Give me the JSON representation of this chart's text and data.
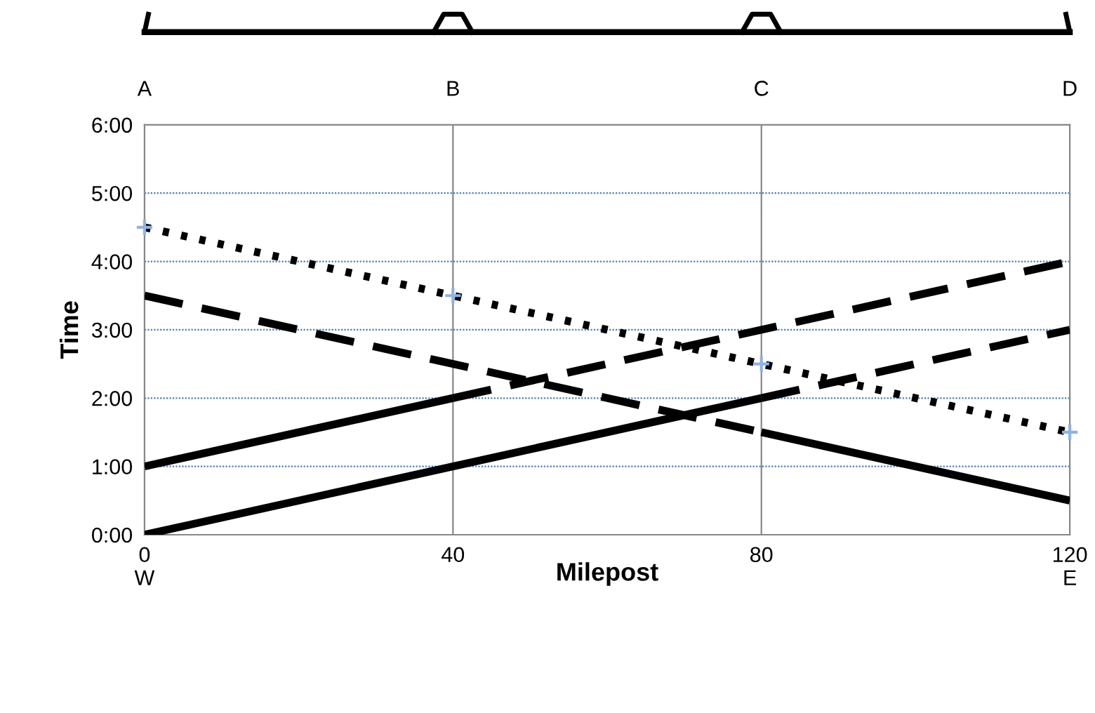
{
  "chart_data": {
    "type": "line",
    "xlabel": "Milepost",
    "ylabel": "Time",
    "xlim": [
      0,
      120
    ],
    "ylim": [
      0,
      6
    ],
    "xticks": [
      {
        "value": 0,
        "label": "0\nW"
      },
      40,
      80,
      {
        "value": 120,
        "label": "120\nE"
      }
    ],
    "annotations": [
      "A",
      "B",
      "C",
      "D"
    ],
    "yticks": [
      {
        "value": 0,
        "label": "0:00"
      },
      {
        "value": 1,
        "label": "1:00"
      },
      {
        "value": 2,
        "label": "2:00"
      },
      {
        "value": 3,
        "label": "3:00"
      },
      {
        "value": 4,
        "label": "4:00"
      },
      {
        "value": 5,
        "label": "5:00"
      },
      {
        "value": 6,
        "label": "6:00"
      }
    ],
    "grid": true,
    "series": [
      {
        "color": "#000000",
        "line_style": "solid",
        "x": [
          0,
          80
        ],
        "values": [
          0,
          2
        ]
      },
      {
        "color": "#000000",
        "line_style": "dashed",
        "x": [
          80,
          120
        ],
        "values": [
          2,
          3
        ]
      },
      {
        "color": "#000000",
        "line_style": "solid",
        "x": [
          0,
          40
        ],
        "values": [
          1,
          2
        ]
      },
      {
        "color": "#000000",
        "line_style": "dashed",
        "x": [
          40,
          120
        ],
        "values": [
          2,
          4
        ]
      },
      {
        "color": "#000000",
        "line_style": "dashed",
        "x": [
          0,
          80
        ],
        "values": [
          3.5,
          1.5
        ]
      },
      {
        "color": "#000000",
        "line_style": "solid",
        "x": [
          80,
          120
        ],
        "values": [
          1.5,
          0.5
        ]
      },
      {
        "color": "#000000",
        "line_style": "dotted",
        "marker": "cross",
        "x": [
          0,
          40,
          80,
          120
        ],
        "values": [
          4.5,
          3.5,
          2.5,
          1.5
        ]
      }
    ]
  }
}
